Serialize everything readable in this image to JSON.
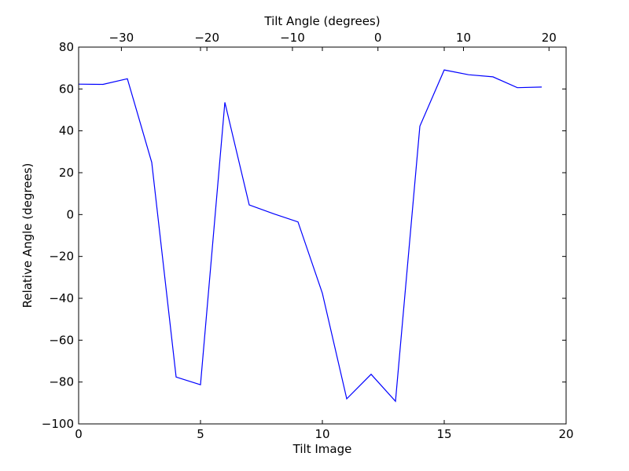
{
  "chart_data": {
    "type": "line",
    "xlabel": "Tilt Image",
    "ylabel": "Relative Angle (degrees)",
    "x2label": "Tilt Angle (degrees)",
    "xlim": [
      0,
      20
    ],
    "ylim": [
      -100,
      80
    ],
    "x2lim": [
      -35,
      22
    ],
    "xticks": [
      0,
      5,
      10,
      15,
      20
    ],
    "yticks": [
      -100,
      -80,
      -60,
      -40,
      -20,
      0,
      20,
      40,
      60,
      80
    ],
    "x2ticks": [
      -30,
      -20,
      -10,
      0,
      10,
      20
    ],
    "grid": false,
    "line_color": "#0000ff",
    "series": [
      {
        "x": [
          0,
          1,
          2,
          3,
          4,
          5,
          6,
          7,
          8,
          9,
          10,
          11,
          12,
          13,
          14,
          15,
          16,
          17,
          18,
          19
        ],
        "values": [
          62.3,
          62.2,
          64.9,
          24.9,
          -77.6,
          -81.3,
          53.6,
          4.6,
          0.4,
          -3.5,
          -37.6,
          -88.0,
          -76.3,
          -89.2,
          42.2,
          69.1,
          66.8,
          65.8,
          60.6,
          60.9
        ]
      }
    ]
  }
}
